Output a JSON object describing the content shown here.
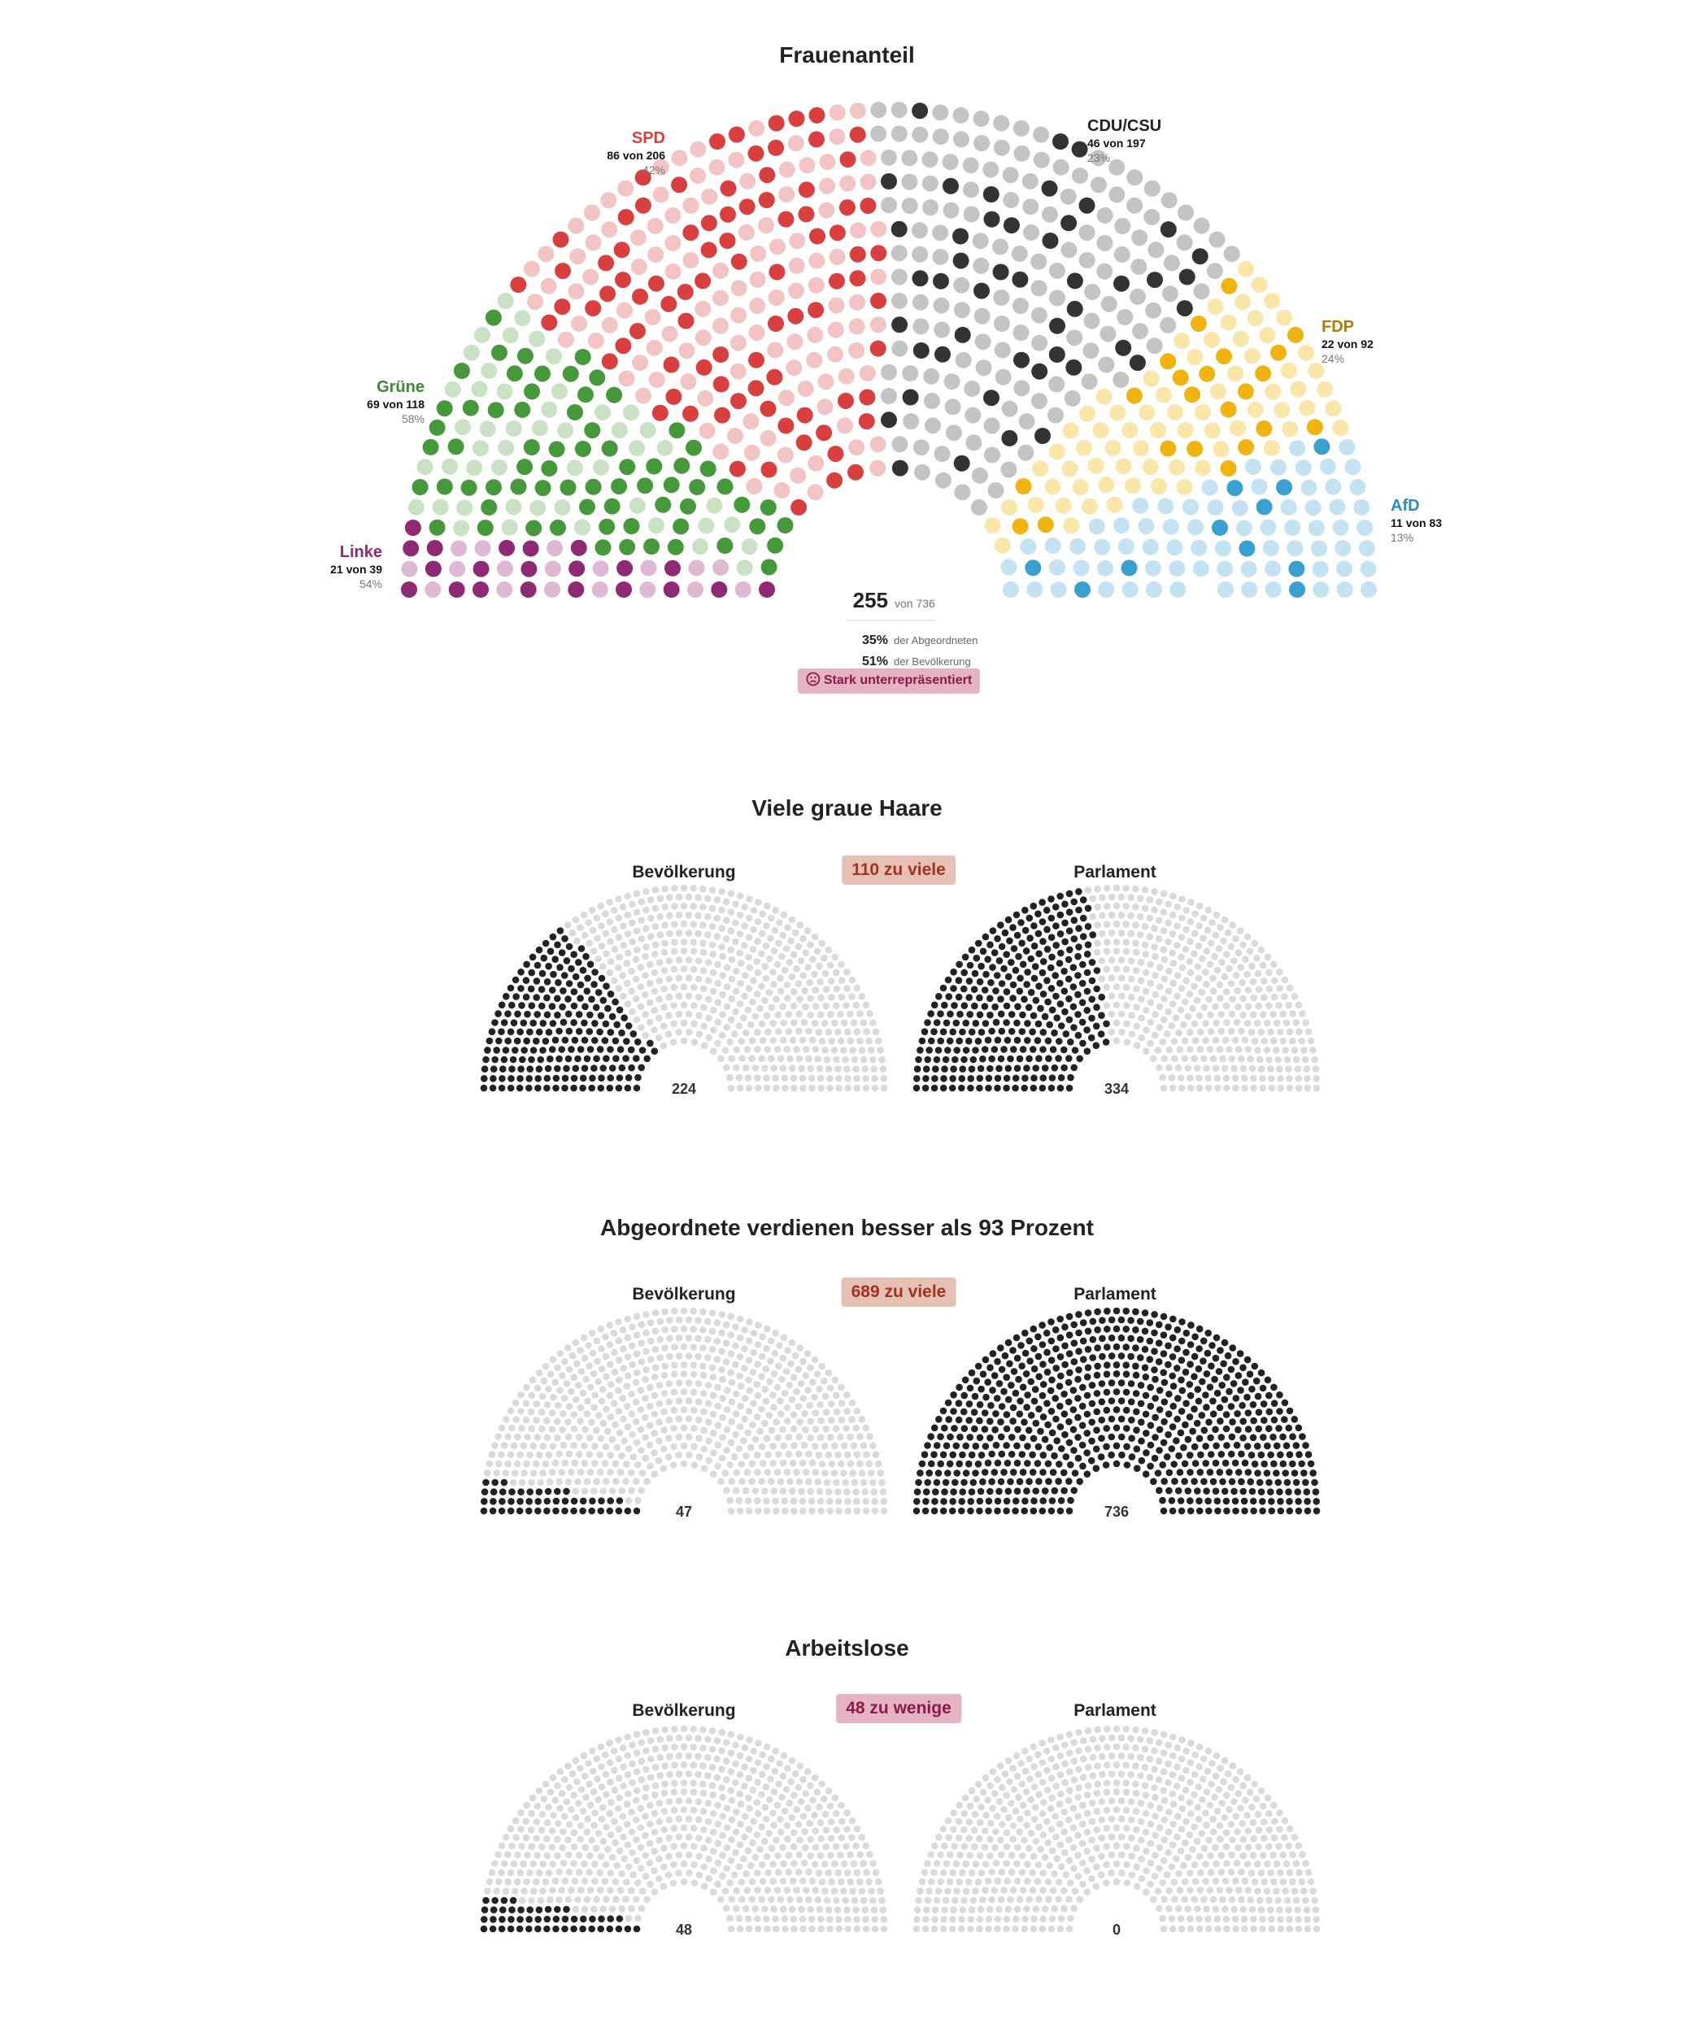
{
  "frauen": {
    "title": "Frauenanteil",
    "total_value": "255",
    "total_suffix": "von 736",
    "stat1_value": "35%",
    "stat1_label": "der Abgeordneten",
    "stat2_value": "51%",
    "stat2_label": "der Bevölkerung",
    "badge_icon": "sad-face-icon",
    "badge_text": "Stark unterrepräsentiert",
    "badge_bg": "#e5b3c4",
    "badge_color": "#8b1a4a"
  },
  "grau": {
    "title": "Viele graue Haare",
    "left_label": "Bevölkerung",
    "right_label": "Parlament",
    "badge": "110 zu viele",
    "badge_bg": "#e6c0b5",
    "badge_color": "#a0341f"
  },
  "verdienen": {
    "title": "Abgeordnete verdienen besser als 93 Prozent",
    "left_label": "Bevölkerung",
    "right_label": "Parlament",
    "badge": "689 zu viele",
    "badge_bg": "#e6c0b5",
    "badge_color": "#a0341f"
  },
  "arbeitslose": {
    "title": "Arbeitslose",
    "left_label": "Bevölkerung",
    "right_label": "Parlament",
    "badge": "48 zu wenige",
    "badge_bg": "#e5b3c4",
    "badge_color": "#8b1a4a"
  },
  "chart_data": [
    {
      "type": "parliament",
      "title": "Frauenanteil",
      "total": 736,
      "highlighted_total": 255,
      "series": [
        {
          "name": "Linke",
          "label": "21 von 39",
          "percent": "54%",
          "women": 21,
          "seats": 39,
          "color": "#8e2a74",
          "light": "#ddb9d3",
          "label_color": "#8e2a74"
        },
        {
          "name": "Grüne",
          "label": "69 von 118",
          "percent": "58%",
          "women": 69,
          "seats": 118,
          "color": "#46993b",
          "light": "#c9e2c4",
          "label_color": "#3d8a33"
        },
        {
          "name": "SPD",
          "label": "86 von 206",
          "percent": "42%",
          "women": 86,
          "seats": 206,
          "color": "#d93f3f",
          "light": "#f3c4c4",
          "label_color": "#d93f3f"
        },
        {
          "name": "CDU/CSU",
          "label": "46 von 197",
          "percent": "23%",
          "women": 46,
          "seats": 197,
          "color": "#333333",
          "light": "#c4c4c4",
          "label_color": "#222222"
        },
        {
          "name": "FDP",
          "label": "22 von 92",
          "percent": "24%",
          "women": 22,
          "seats": 92,
          "color": "#f0b310",
          "light": "#fae6a8",
          "label_color": "#b07d00"
        },
        {
          "name": "AfD",
          "label": "11 von 83",
          "percent": "13%",
          "women": 11,
          "seats": 83,
          "color": "#3aa0d0",
          "light": "#c3e3f2",
          "label_color": "#2a8cbb"
        }
      ]
    },
    {
      "type": "parliament",
      "title": "Viele graue Haare",
      "total": 736,
      "series": [
        {
          "name": "Bevölkerung",
          "value": 224
        },
        {
          "name": "Parlament",
          "value": 334
        }
      ],
      "difference": "110 zu viele"
    },
    {
      "type": "parliament",
      "title": "Abgeordnete verdienen besser als 93 Prozent",
      "total": 736,
      "series": [
        {
          "name": "Bevölkerung",
          "value": 47
        },
        {
          "name": "Parlament",
          "value": 736
        }
      ],
      "difference": "689 zu viele"
    },
    {
      "type": "parliament",
      "title": "Arbeitslose",
      "total": 736,
      "series": [
        {
          "name": "Bevölkerung",
          "value": 48
        },
        {
          "name": "Parlament",
          "value": 0
        }
      ],
      "difference": "48 zu wenige"
    }
  ]
}
